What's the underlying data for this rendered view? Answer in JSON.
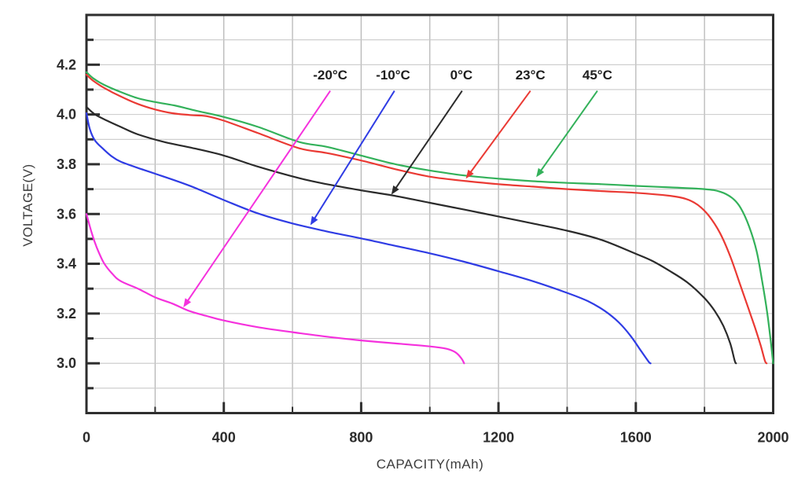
{
  "figure": {
    "background": "#ffffff",
    "axis_color": "#2e2e2e",
    "tick_label_color": "#2b2b2b",
    "annotation_text_color": "#1f1f1f",
    "grid_color_h": "#c9c9c9",
    "grid_color_v": "#b7b7b7"
  },
  "chart_data": {
    "type": "line",
    "title": "",
    "xlabel": "CAPACITY(mAh)",
    "ylabel": "VOLTAGE(V)",
    "xlim": [
      0,
      2000
    ],
    "ylim": [
      2.8,
      4.4
    ],
    "grid": "on",
    "legend_position": "labels-with-arrows-inside-plot",
    "x_major_ticks": [
      0,
      400,
      800,
      1200,
      1600,
      2000
    ],
    "x_tick_labels": [
      "0",
      "400",
      "800",
      "1200",
      "1600",
      "2000"
    ],
    "x_minor_ticks": [
      200,
      600,
      1000,
      1400,
      1800
    ],
    "x_grid_step": 200,
    "y_major_ticks": [
      3.0,
      3.2,
      3.4,
      3.6,
      3.8,
      4.0,
      4.2
    ],
    "y_tick_labels": [
      "3.0",
      "3.2",
      "3.4",
      "3.6",
      "3.8",
      "4.0",
      "4.2"
    ],
    "y_minor_ticks": [
      2.9,
      3.1,
      3.3,
      3.5,
      3.7,
      3.9,
      4.1,
      4.3
    ],
    "y_grid_step": 0.1,
    "series": [
      {
        "name": "45C",
        "label": "45°C",
        "color": "#33b15a",
        "points": [
          [
            0,
            4.17
          ],
          [
            20,
            4.145
          ],
          [
            50,
            4.12
          ],
          [
            100,
            4.09
          ],
          [
            150,
            4.065
          ],
          [
            200,
            4.05
          ],
          [
            260,
            4.035
          ],
          [
            320,
            4.015
          ],
          [
            400,
            3.99
          ],
          [
            500,
            3.95
          ],
          [
            618,
            3.89
          ],
          [
            700,
            3.87
          ],
          [
            800,
            3.835
          ],
          [
            900,
            3.8
          ],
          [
            1000,
            3.775
          ],
          [
            1100,
            3.755
          ],
          [
            1200,
            3.742
          ],
          [
            1300,
            3.732
          ],
          [
            1400,
            3.725
          ],
          [
            1500,
            3.72
          ],
          [
            1600,
            3.713
          ],
          [
            1700,
            3.707
          ],
          [
            1800,
            3.7
          ],
          [
            1845,
            3.69
          ],
          [
            1880,
            3.665
          ],
          [
            1905,
            3.625
          ],
          [
            1930,
            3.55
          ],
          [
            1952,
            3.45
          ],
          [
            1968,
            3.33
          ],
          [
            1982,
            3.21
          ],
          [
            1992,
            3.1
          ],
          [
            2000,
            3.0
          ]
        ]
      },
      {
        "name": "23C",
        "label": "23°C",
        "color": "#ea3a34",
        "points": [
          [
            0,
            4.16
          ],
          [
            20,
            4.135
          ],
          [
            50,
            4.108
          ],
          [
            100,
            4.072
          ],
          [
            150,
            4.042
          ],
          [
            200,
            4.02
          ],
          [
            250,
            4.005
          ],
          [
            300,
            3.998
          ],
          [
            350,
            3.993
          ],
          [
            400,
            3.975
          ],
          [
            500,
            3.925
          ],
          [
            618,
            3.865
          ],
          [
            700,
            3.845
          ],
          [
            800,
            3.815
          ],
          [
            900,
            3.78
          ],
          [
            1000,
            3.75
          ],
          [
            1100,
            3.733
          ],
          [
            1200,
            3.72
          ],
          [
            1300,
            3.71
          ],
          [
            1400,
            3.7
          ],
          [
            1500,
            3.692
          ],
          [
            1600,
            3.685
          ],
          [
            1700,
            3.673
          ],
          [
            1745,
            3.661
          ],
          [
            1780,
            3.637
          ],
          [
            1812,
            3.594
          ],
          [
            1845,
            3.524
          ],
          [
            1875,
            3.43
          ],
          [
            1903,
            3.32
          ],
          [
            1928,
            3.22
          ],
          [
            1948,
            3.14
          ],
          [
            1964,
            3.07
          ],
          [
            1976,
            3.01
          ],
          [
            1981,
            3.0
          ]
        ]
      },
      {
        "name": "0C",
        "label": "0°C",
        "color": "#2b2b2b",
        "points": [
          [
            0,
            4.03
          ],
          [
            25,
            4.0
          ],
          [
            60,
            3.975
          ],
          [
            100,
            3.95
          ],
          [
            150,
            3.92
          ],
          [
            230,
            3.888
          ],
          [
            300,
            3.868
          ],
          [
            400,
            3.835
          ],
          [
            500,
            3.79
          ],
          [
            620,
            3.744
          ],
          [
            700,
            3.72
          ],
          [
            800,
            3.695
          ],
          [
            890,
            3.675
          ],
          [
            1000,
            3.645
          ],
          [
            1100,
            3.618
          ],
          [
            1200,
            3.59
          ],
          [
            1300,
            3.562
          ],
          [
            1400,
            3.533
          ],
          [
            1500,
            3.496
          ],
          [
            1600,
            3.44
          ],
          [
            1650,
            3.41
          ],
          [
            1700,
            3.37
          ],
          [
            1750,
            3.325
          ],
          [
            1800,
            3.262
          ],
          [
            1830,
            3.21
          ],
          [
            1855,
            3.15
          ],
          [
            1875,
            3.08
          ],
          [
            1888,
            3.01
          ],
          [
            1892,
            3.0
          ]
        ]
      },
      {
        "name": "-10C",
        "label": "-10°C",
        "color": "#2f3ce4",
        "points": [
          [
            0,
            4.005
          ],
          [
            10,
            3.94
          ],
          [
            25,
            3.895
          ],
          [
            50,
            3.86
          ],
          [
            75,
            3.83
          ],
          [
            100,
            3.81
          ],
          [
            150,
            3.785
          ],
          [
            200,
            3.762
          ],
          [
            300,
            3.714
          ],
          [
            400,
            3.656
          ],
          [
            500,
            3.602
          ],
          [
            600,
            3.562
          ],
          [
            700,
            3.53
          ],
          [
            800,
            3.502
          ],
          [
            900,
            3.472
          ],
          [
            1000,
            3.442
          ],
          [
            1100,
            3.408
          ],
          [
            1200,
            3.37
          ],
          [
            1300,
            3.33
          ],
          [
            1400,
            3.283
          ],
          [
            1460,
            3.25
          ],
          [
            1510,
            3.21
          ],
          [
            1550,
            3.165
          ],
          [
            1585,
            3.11
          ],
          [
            1615,
            3.05
          ],
          [
            1638,
            3.005
          ],
          [
            1643,
            3.0
          ]
        ]
      },
      {
        "name": "-20C",
        "label": "-20°C",
        "color": "#f531dd",
        "points": [
          [
            0,
            3.6
          ],
          [
            15,
            3.525
          ],
          [
            30,
            3.465
          ],
          [
            50,
            3.405
          ],
          [
            75,
            3.36
          ],
          [
            100,
            3.33
          ],
          [
            150,
            3.3
          ],
          [
            200,
            3.265
          ],
          [
            250,
            3.24
          ],
          [
            300,
            3.21
          ],
          [
            350,
            3.19
          ],
          [
            400,
            3.172
          ],
          [
            500,
            3.145
          ],
          [
            600,
            3.125
          ],
          [
            700,
            3.107
          ],
          [
            800,
            3.092
          ],
          [
            900,
            3.08
          ],
          [
            1000,
            3.068
          ],
          [
            1050,
            3.058
          ],
          [
            1075,
            3.044
          ],
          [
            1092,
            3.02
          ],
          [
            1100,
            3.0
          ]
        ]
      }
    ],
    "annotations": [
      {
        "label": "-20°C",
        "series": "-20C",
        "color": "#f531dd",
        "label_at": [
          710,
          4.158
        ],
        "arrow_from": [
          710,
          4.095
        ],
        "arrow_to": [
          282,
          3.225
        ]
      },
      {
        "label": "-10°C",
        "series": "-10C",
        "color": "#2f3ce4",
        "label_at": [
          893,
          4.158
        ],
        "arrow_from": [
          897,
          4.095
        ],
        "arrow_to": [
          652,
          3.555
        ]
      },
      {
        "label": "0°C",
        "series": "0C",
        "color": "#2b2b2b",
        "label_at": [
          1092,
          4.158
        ],
        "arrow_from": [
          1094,
          4.095
        ],
        "arrow_to": [
          888,
          3.678
        ]
      },
      {
        "label": "23°C",
        "series": "23C",
        "color": "#ea3a34",
        "label_at": [
          1293,
          4.158
        ],
        "arrow_from": [
          1293,
          4.095
        ],
        "arrow_to": [
          1105,
          3.742
        ]
      },
      {
        "label": "45°C",
        "series": "45C",
        "color": "#33b15a",
        "label_at": [
          1488,
          4.158
        ],
        "arrow_from": [
          1488,
          4.095
        ],
        "arrow_to": [
          1310,
          3.748
        ]
      }
    ]
  }
}
